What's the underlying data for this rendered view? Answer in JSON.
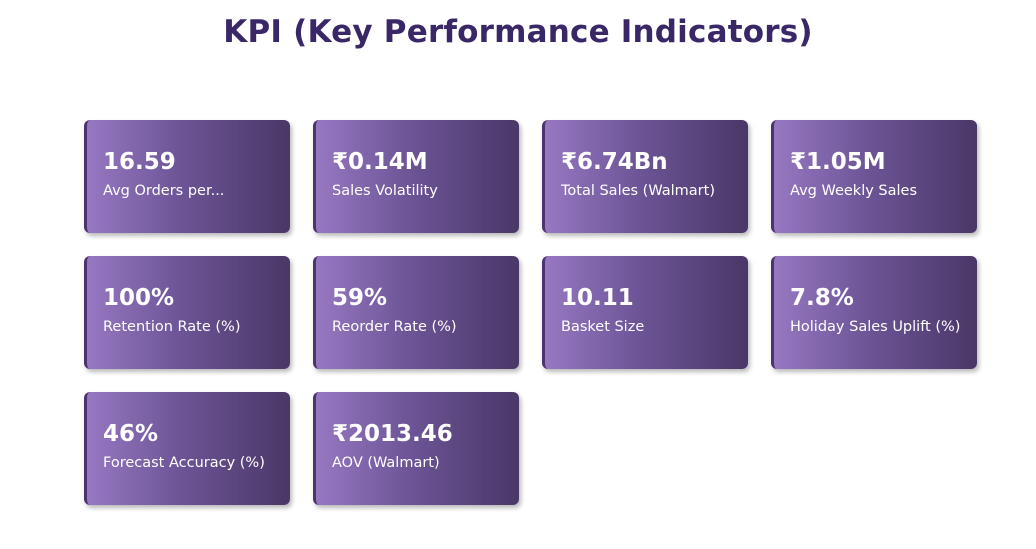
{
  "title": "KPI (Key Performance Indicators)",
  "kpis": [
    {
      "value": "16.59",
      "label": "Avg Orders per..."
    },
    {
      "value": "₹0.14M",
      "label": "Sales Volatility"
    },
    {
      "value": "₹6.74Bn",
      "label": "Total Sales (Walmart)"
    },
    {
      "value": "₹1.05M",
      "label": "Avg Weekly Sales"
    },
    {
      "value": "100%",
      "label": "Retention Rate (%)"
    },
    {
      "value": "59%",
      "label": "Reorder Rate (%)"
    },
    {
      "value": "10.11",
      "label": "Basket Size"
    },
    {
      "value": "7.8%",
      "label": "Holiday Sales Uplift (%)"
    },
    {
      "value": "46%",
      "label": "Forecast Accuracy (%)"
    },
    {
      "value": "₹2013.46",
      "label": "AOV (Walmart)"
    }
  ],
  "colors": {
    "title": "#3a2768",
    "card_gradient_start": "#9778c2",
    "card_gradient_end": "#4a3767",
    "card_text": "#ffffff"
  }
}
